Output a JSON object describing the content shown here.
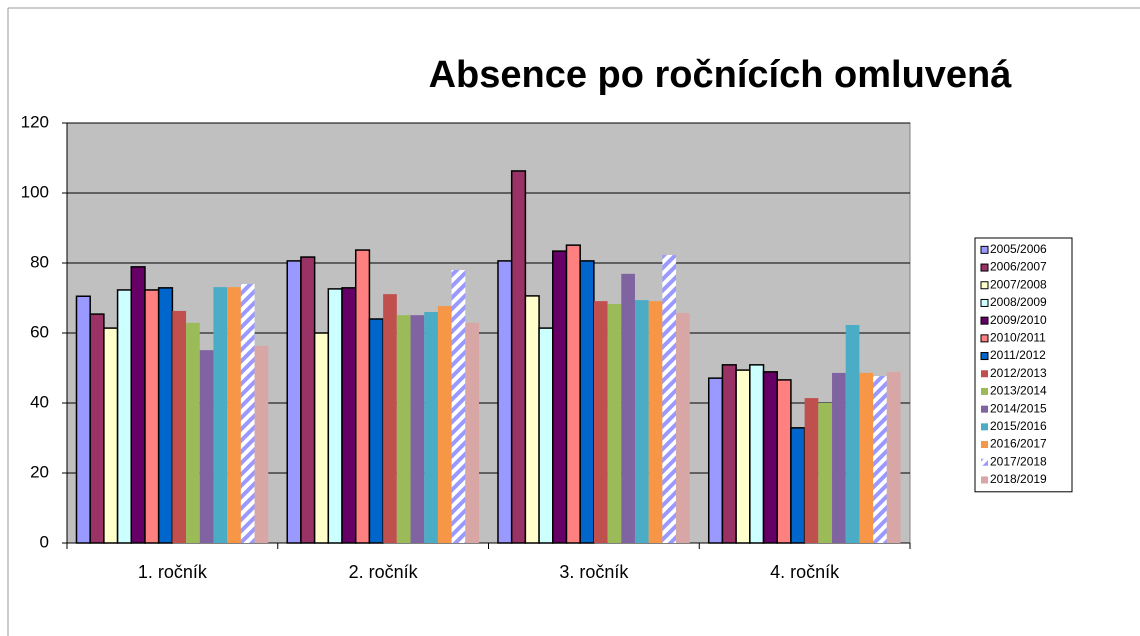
{
  "chart_data": {
    "type": "bar",
    "title": "Absence po ročnících omluvená",
    "categories": [
      "1. ročník",
      "2. ročník",
      "3. ročník",
      "4. ročník"
    ],
    "ylim": [
      0,
      120
    ],
    "yticks": [
      0,
      20,
      40,
      60,
      80,
      100,
      120
    ],
    "grid": true,
    "legend": "right",
    "series": [
      {
        "name": "2005/2006",
        "color": "#9999ff",
        "outline": "#000000",
        "values": [
          70.5,
          80.6,
          80.6,
          47.1
        ]
      },
      {
        "name": "2006/2007",
        "color": "#993366",
        "outline": "#000000",
        "values": [
          65.4,
          81.7,
          106.3,
          50.9
        ]
      },
      {
        "name": "2007/2008",
        "color": "#ffffcc",
        "outline": "#000000",
        "values": [
          61.4,
          60,
          70.6,
          49.4
        ]
      },
      {
        "name": "2008/2009",
        "color": "#ccffff",
        "outline": "#000000",
        "values": [
          72.3,
          72.6,
          61.4,
          50.9
        ]
      },
      {
        "name": "2009/2010",
        "color": "#660066",
        "outline": "#000000",
        "values": [
          78.9,
          72.9,
          83.4,
          48.9
        ]
      },
      {
        "name": "2010/2011",
        "color": "#ff8080",
        "outline": "#000000",
        "values": [
          72.3,
          83.7,
          85.1,
          46.6
        ]
      },
      {
        "name": "2011/2012",
        "color": "#0066cc",
        "outline": "#000000",
        "values": [
          72.9,
          64,
          80.6,
          32.9
        ]
      },
      {
        "name": "2012/2013",
        "color": "#c0504d",
        "values": [
          66.3,
          71.1,
          69.1,
          41.4
        ]
      },
      {
        "name": "2013/2014",
        "color": "#9bbb59",
        "values": [
          62.9,
          65.1,
          68.3,
          40
        ]
      },
      {
        "name": "2014/2015",
        "color": "#8064a2",
        "values": [
          55.1,
          65.1,
          76.9,
          48.6
        ]
      },
      {
        "name": "2015/2016",
        "color": "#4bacc6",
        "values": [
          73.1,
          66,
          69.4,
          62.3
        ]
      },
      {
        "name": "2016/2017",
        "color": "#f79646",
        "values": [
          73.1,
          67.7,
          69.1,
          48.6
        ]
      },
      {
        "name": "2017/2018",
        "color": "#9999ff",
        "pattern": "diagonal",
        "values": [
          74,
          78,
          82.3,
          47.7
        ]
      },
      {
        "name": "2018/2019",
        "color": "#d9a6a6",
        "values": [
          56.3,
          62.9,
          65.7,
          48.9
        ]
      }
    ]
  }
}
